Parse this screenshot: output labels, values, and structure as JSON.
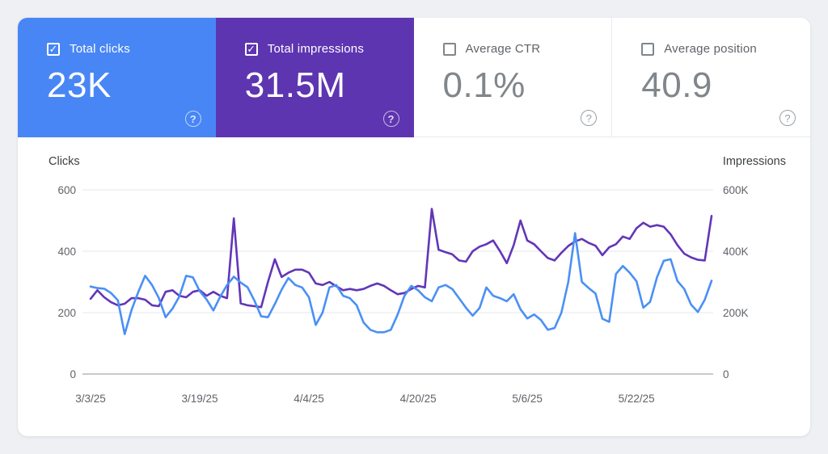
{
  "page_background": "#eef0f4",
  "colors": {
    "clicks_card_blue": "#4886f5",
    "impressions_card_purple": "#5e35b1",
    "clicks_line_blue": "#4a90f5",
    "impressions_line_purple": "#6236b8",
    "grid_line": "#ebecee",
    "zero_axis_line": "#a6a9ad"
  },
  "metrics": [
    {
      "label": "Total clicks",
      "value": "23K",
      "checked": true,
      "bg": "#4886f5"
    },
    {
      "label": "Total impressions",
      "value": "31.5M",
      "checked": true,
      "bg": "#5e35b1"
    },
    {
      "label": "Average CTR",
      "value": "0.1%",
      "checked": false,
      "bg": "#ffffff"
    },
    {
      "label": "Average position",
      "value": "40.9",
      "checked": false,
      "bg": "#ffffff"
    }
  ],
  "help_icon_symbol": "?",
  "checkbox_check_symbol": "✓",
  "chart_data": {
    "type": "line",
    "x_start_date": "3/3/25",
    "x_end_date": "6/2/25",
    "x_interval": "daily",
    "x_ticks": [
      {
        "label": "3/3/25",
        "day": 0
      },
      {
        "label": "3/19/25",
        "day": 16
      },
      {
        "label": "4/4/25",
        "day": 32
      },
      {
        "label": "4/20/25",
        "day": 48
      },
      {
        "label": "5/6/25",
        "day": 64
      },
      {
        "label": "5/22/25",
        "day": 80
      }
    ],
    "left_axis": {
      "title": "Clicks",
      "tick_labels": [
        "600",
        "400",
        "200",
        "0"
      ],
      "tick_values": [
        600,
        400,
        200,
        0
      ],
      "range": [
        0,
        600
      ]
    },
    "right_axis": {
      "title": "Impressions",
      "tick_labels": [
        "600K",
        "400K",
        "200K",
        "0"
      ],
      "tick_values": [
        600000,
        400000,
        200000,
        0
      ],
      "range": [
        0,
        600000
      ]
    },
    "grid": "horizontal-only",
    "legend": "none",
    "series": [
      {
        "name": "Total impressions",
        "axis": "right",
        "color": "#6236b8",
        "values_scale": "thousands (value 245 = 245K impressions)",
        "values": [
          245,
          273,
          250,
          234,
          224,
          229,
          247,
          247,
          242,
          224,
          221,
          268,
          273,
          255,
          250,
          268,
          273,
          255,
          268,
          255,
          247,
          507,
          230,
          224,
          221,
          218,
          300,
          374,
          316,
          330,
          340,
          340,
          330,
          295,
          290,
          300,
          286,
          273,
          277,
          273,
          277,
          287,
          295,
          287,
          273,
          260,
          264,
          277,
          287,
          282,
          538,
          405,
          397,
          390,
          370,
          366,
          400,
          415,
          423,
          435,
          400,
          361,
          420,
          500,
          435,
          423,
          400,
          378,
          370,
          395,
          417,
          432,
          440,
          427,
          418,
          387,
          413,
          423,
          448,
          440,
          475,
          493,
          480,
          485,
          480,
          455,
          420,
          392,
          380,
          372,
          370,
          515
        ]
      },
      {
        "name": "Total clicks",
        "axis": "left",
        "color": "#4a90f5",
        "values_scale": "clicks per day",
        "values": [
          285,
          280,
          278,
          264,
          240,
          130,
          208,
          268,
          320,
          290,
          248,
          185,
          213,
          252,
          320,
          315,
          270,
          243,
          207,
          252,
          290,
          317,
          298,
          283,
          240,
          188,
          185,
          228,
          275,
          313,
          290,
          282,
          250,
          160,
          200,
          282,
          290,
          255,
          247,
          224,
          168,
          144,
          136,
          136,
          144,
          194,
          255,
          287,
          273,
          250,
          237,
          282,
          290,
          277,
          247,
          216,
          190,
          215,
          282,
          255,
          247,
          237,
          260,
          211,
          181,
          194,
          176,
          144,
          150,
          200,
          300,
          459,
          300,
          280,
          262,
          180,
          170,
          326,
          352,
          330,
          302,
          216,
          235,
          315,
          369,
          374,
          303,
          277,
          226,
          202,
          242,
          304
        ]
      }
    ]
  }
}
